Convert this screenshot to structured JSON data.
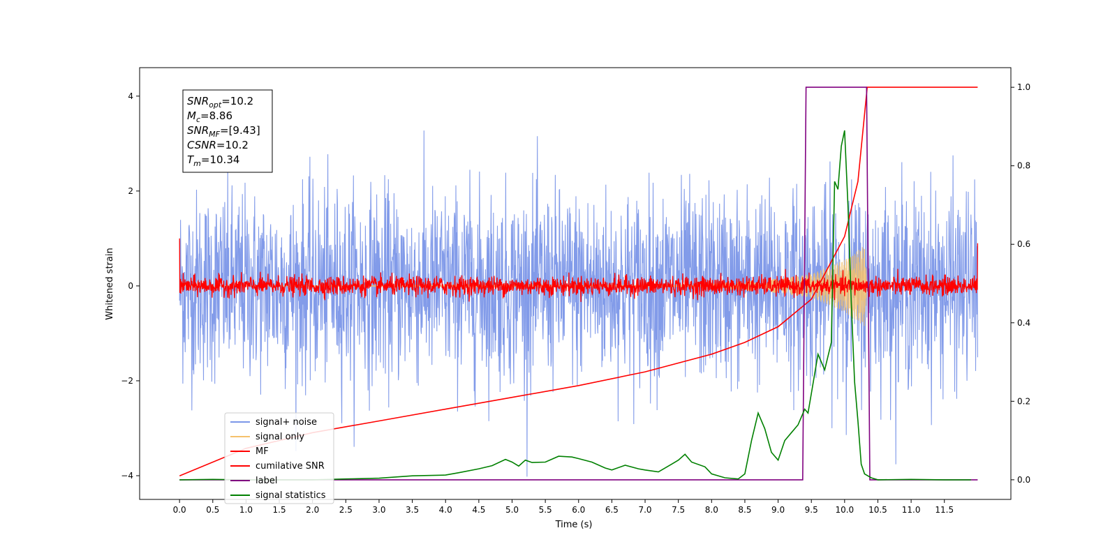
{
  "chart_data": {
    "type": "line",
    "title": "",
    "xlabel": "Time (s)",
    "ylabel": "Whitened strain",
    "xlim": [
      -0.6,
      12.5
    ],
    "ylim": [
      -4.5,
      4.6
    ],
    "y2lim": [
      -0.05,
      1.05
    ],
    "xticks": [
      0.0,
      0.5,
      1.0,
      1.5,
      2.0,
      2.5,
      3.0,
      3.5,
      4.0,
      4.5,
      5.0,
      5.5,
      6.0,
      6.5,
      7.0,
      7.5,
      8.0,
      8.5,
      9.0,
      9.5,
      10.0,
      10.5,
      11.0,
      11.5
    ],
    "xtick_labels": [
      "0.0",
      "0.5",
      "1.0",
      "1.5",
      "2.0",
      "2.5",
      "3.0",
      "3.5",
      "4.0",
      "4.5",
      "5.0",
      "5.5",
      "6.0",
      "6.5",
      "7.0",
      "7.5",
      "8.0",
      "8.5",
      "9.0",
      "9.5",
      "10.0",
      "10.5",
      "11.0",
      "11.5"
    ],
    "yticks": [
      -4,
      -2,
      0,
      2,
      4
    ],
    "ytick_labels": [
      "−4",
      "−2",
      "0",
      "2",
      "4"
    ],
    "y2ticks": [
      0.0,
      0.2,
      0.4,
      0.6,
      0.8,
      1.0
    ],
    "y2tick_labels": [
      "0.0",
      "0.2",
      "0.4",
      "0.6",
      "0.8",
      "1.0"
    ],
    "grid": false,
    "legend_position": "lower-left",
    "legend": [
      {
        "label": "signal+ noise",
        "color": "#7b96e8"
      },
      {
        "label": "signal only",
        "color": "#f5c16c"
      },
      {
        "label": "MF",
        "color": "#ff0000"
      },
      {
        "label": "cumilative SNR",
        "color": "#ff0000"
      },
      {
        "label": "label",
        "color": "#800080"
      },
      {
        "label": "signal statistics",
        "color": "#008000"
      }
    ],
    "info_box": {
      "snr_opt": {
        "sym": "SNR",
        "sub": "opt",
        "val": "=10.2"
      },
      "mc": {
        "sym": "M",
        "sub": "c",
        "val": "=8.86"
      },
      "snr_mf": {
        "sym": "SNR",
        "sub": "MF",
        "val": "=[9.43]"
      },
      "csnr": {
        "sym": "CSNR",
        "val": "=10.2"
      },
      "tm": {
        "sym": "T",
        "sub": "m",
        "val": "=10.34"
      }
    },
    "series": {
      "signal_noise": {
        "axis": "left",
        "color": "#7b96e8",
        "x_range": [
          0.0,
          12.0
        ],
        "amplitude_typical": 1.0,
        "amplitude_extreme": 4.2
      },
      "signal_only": {
        "axis": "left",
        "color": "#f5c16c",
        "x_range": [
          0.0,
          10.34
        ],
        "envelope": [
          [
            8.0,
            0.05
          ],
          [
            9.0,
            0.15
          ],
          [
            9.5,
            0.25
          ],
          [
            10.0,
            0.55
          ],
          [
            10.3,
            0.85
          ],
          [
            10.34,
            0.0
          ]
        ]
      },
      "mf": {
        "axis": "left",
        "color": "#ff0000",
        "x_range": [
          0.0,
          12.0
        ],
        "amplitude_typical": 0.1,
        "endpoints": {
          "start": 1.0,
          "end": 0.9
        }
      },
      "cumulative_snr": {
        "axis": "right",
        "color": "#ff0000",
        "x": [
          0.0,
          1.0,
          2.0,
          3.0,
          4.0,
          5.0,
          6.0,
          7.0,
          8.0,
          8.5,
          9.0,
          9.5,
          10.0,
          10.2,
          10.34,
          12.0
        ],
        "y": [
          0.01,
          0.08,
          0.12,
          0.15,
          0.18,
          0.21,
          0.24,
          0.275,
          0.32,
          0.35,
          0.39,
          0.46,
          0.62,
          0.76,
          1.0,
          1.0
        ]
      },
      "label": {
        "axis": "right",
        "color": "#800080",
        "x": [
          0.0,
          9.37,
          9.42,
          10.33,
          10.38,
          12.0
        ],
        "y": [
          0.0,
          0.0,
          1.0,
          1.0,
          0.0,
          0.0
        ]
      },
      "signal_statistics": {
        "axis": "right",
        "color": "#008000",
        "x": [
          0.0,
          0.5,
          1.0,
          2.0,
          2.5,
          3.0,
          3.5,
          4.0,
          4.2,
          4.5,
          4.7,
          4.9,
          5.0,
          5.1,
          5.2,
          5.3,
          5.5,
          5.7,
          5.9,
          6.0,
          6.2,
          6.4,
          6.5,
          6.7,
          6.9,
          7.0,
          7.2,
          7.4,
          7.5,
          7.6,
          7.7,
          7.9,
          8.0,
          8.2,
          8.4,
          8.5,
          8.6,
          8.7,
          8.8,
          8.9,
          9.0,
          9.1,
          9.2,
          9.3,
          9.4,
          9.45,
          9.5,
          9.6,
          9.7,
          9.8,
          9.85,
          9.9,
          9.95,
          10.0,
          10.05,
          10.1,
          10.15,
          10.2,
          10.25,
          10.3,
          10.4,
          10.5,
          11.0,
          11.5,
          11.9
        ],
        "y": [
          0.0,
          0.001,
          0.0,
          0.0,
          0.002,
          0.004,
          0.01,
          0.012,
          0.018,
          0.028,
          0.036,
          0.052,
          0.045,
          0.035,
          0.05,
          0.044,
          0.045,
          0.06,
          0.058,
          0.054,
          0.045,
          0.03,
          0.025,
          0.037,
          0.028,
          0.025,
          0.02,
          0.04,
          0.05,
          0.065,
          0.045,
          0.033,
          0.015,
          0.005,
          0.002,
          0.015,
          0.1,
          0.17,
          0.13,
          0.07,
          0.05,
          0.1,
          0.12,
          0.14,
          0.18,
          0.17,
          0.22,
          0.32,
          0.28,
          0.35,
          0.76,
          0.74,
          0.85,
          0.89,
          0.7,
          0.45,
          0.25,
          0.15,
          0.04,
          0.015,
          0.005,
          0.0,
          0.001,
          0.0,
          0.0
        ]
      }
    }
  }
}
